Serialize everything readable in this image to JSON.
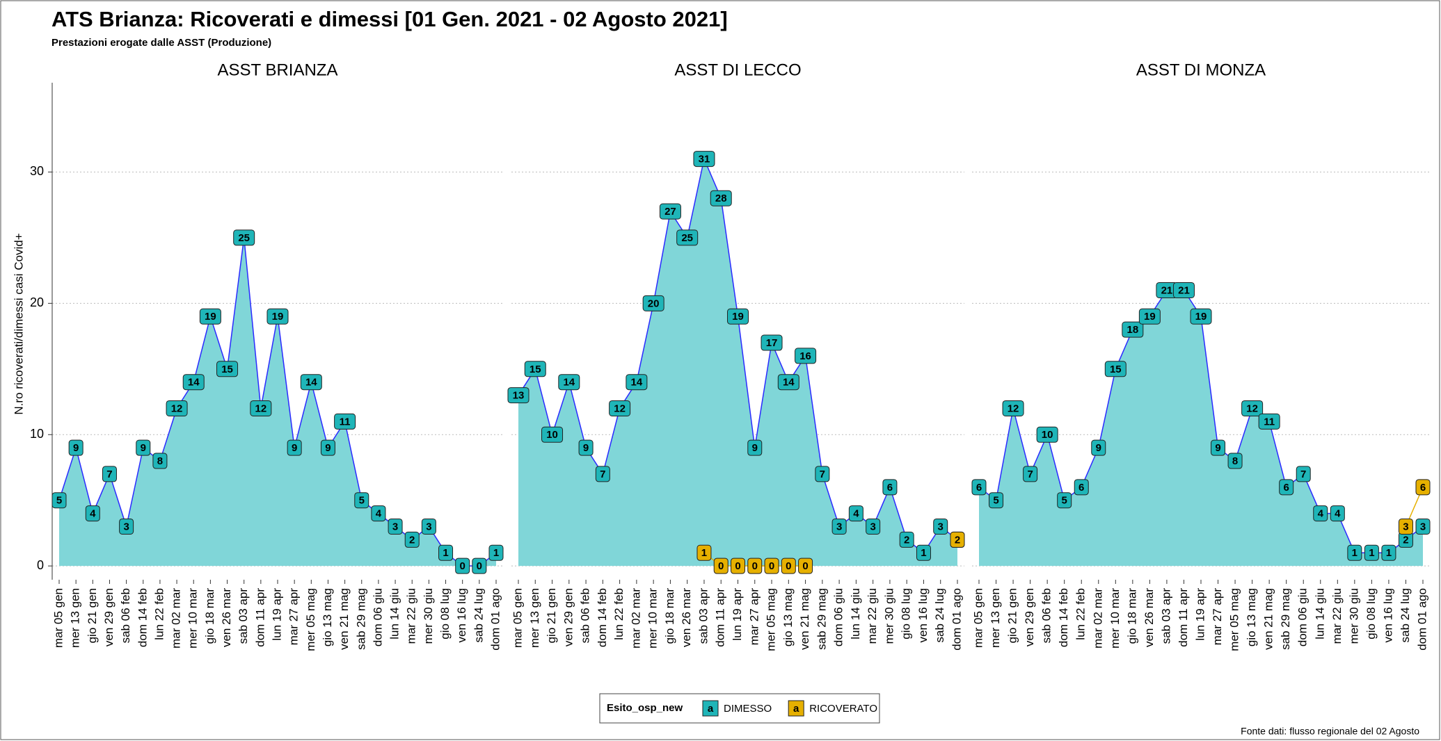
{
  "title": "ATS Brianza: Ricoverati e dimessi [01 Gen. 2021 - 02 Agosto 2021]",
  "subtitle": "Prestazioni erogate dalle ASST (Produzione)",
  "y_label": "N.ro ricoverati/dimessi casi Covid+",
  "legend_title": "Esito_osp_new",
  "legend_glyph": "a",
  "source": "Fonte dati: flusso regionale del 02 Agosto",
  "chart_data": [
    {
      "type": "line",
      "title": "ASST BRIANZA",
      "categories": [
        "mar 05 gen",
        "mer 13 gen",
        "gio 21 gen",
        "ven 29 gen",
        "sab 06 feb",
        "dom 14 feb",
        "lun 22 feb",
        "mar 02 mar",
        "mer 10 mar",
        "gio 18 mar",
        "ven 26 mar",
        "sab 03 apr",
        "dom 11 apr",
        "lun 19 apr",
        "mar 27 apr",
        "mer 05 mag",
        "gio 13 mag",
        "ven 21 mag",
        "sab 29 mag",
        "dom 06 giu",
        "lun 14 giu",
        "mar 22 giu",
        "mer 30 giu",
        "gio 08 lug",
        "ven 16 lug",
        "sab 24 lug",
        "dom 01 ago"
      ],
      "series": [
        {
          "name": "DIMESSO",
          "color": "#1fb5b8",
          "values": [
            5,
            9,
            4,
            7,
            3,
            9,
            8,
            12,
            14,
            19,
            15,
            25,
            12,
            19,
            9,
            14,
            9,
            11,
            5,
            4,
            3,
            2,
            3,
            1,
            0,
            0,
            1
          ]
        },
        {
          "name": "RICOVERATO",
          "color": "#e6b000",
          "values": [
            null,
            null,
            null,
            null,
            null,
            null,
            null,
            null,
            null,
            null,
            null,
            null,
            null,
            null,
            null,
            null,
            null,
            null,
            null,
            null,
            null,
            null,
            null,
            null,
            null,
            null,
            null
          ]
        }
      ],
      "ylim": [
        -1.05,
        36.8
      ],
      "yticks": [
        0,
        10,
        20,
        30
      ],
      "grid": true
    },
    {
      "type": "line",
      "title": "ASST DI LECCO",
      "categories": [
        "mar 05 gen",
        "mer 13 gen",
        "gio 21 gen",
        "ven 29 gen",
        "sab 06 feb",
        "dom 14 feb",
        "lun 22 feb",
        "mar 02 mar",
        "mer 10 mar",
        "gio 18 mar",
        "ven 26 mar",
        "sab 03 apr",
        "dom 11 apr",
        "lun 19 apr",
        "mar 27 apr",
        "mer 05 mag",
        "gio 13 mag",
        "ven 21 mag",
        "sab 29 mag",
        "dom 06 giu",
        "lun 14 giu",
        "mar 22 giu",
        "mer 30 giu",
        "gio 08 lug",
        "ven 16 lug",
        "sab 24 lug",
        "dom 01 ago"
      ],
      "series": [
        {
          "name": "DIMESSO",
          "color": "#1fb5b8",
          "values": [
            13,
            15,
            10,
            14,
            9,
            7,
            12,
            14,
            20,
            27,
            25,
            31,
            28,
            19,
            9,
            17,
            14,
            16,
            7,
            3,
            4,
            3,
            6,
            2,
            1,
            3,
            2
          ]
        },
        {
          "name": "RICOVERATO",
          "color": "#e6b000",
          "values": [
            null,
            null,
            null,
            null,
            null,
            null,
            null,
            null,
            null,
            null,
            null,
            1,
            0,
            0,
            0,
            0,
            0,
            0,
            null,
            null,
            null,
            null,
            null,
            null,
            null,
            null,
            2
          ]
        }
      ],
      "ylim": [
        -1.05,
        36.8
      ],
      "yticks": [
        0,
        10,
        20,
        30
      ],
      "grid": true
    },
    {
      "type": "line",
      "title": "ASST DI MONZA",
      "categories": [
        "mar 05 gen",
        "mer 13 gen",
        "gio 21 gen",
        "ven 29 gen",
        "sab 06 feb",
        "dom 14 feb",
        "lun 22 feb",
        "mar 02 mar",
        "mer 10 mar",
        "gio 18 mar",
        "ven 26 mar",
        "sab 03 apr",
        "dom 11 apr",
        "lun 19 apr",
        "mar 27 apr",
        "mer 05 mag",
        "gio 13 mag",
        "ven 21 mag",
        "sab 29 mag",
        "dom 06 giu",
        "lun 14 giu",
        "mar 22 giu",
        "mer 30 giu",
        "gio 08 lug",
        "ven 16 lug",
        "sab 24 lug",
        "dom 01 ago"
      ],
      "series": [
        {
          "name": "DIMESSO",
          "color": "#1fb5b8",
          "values": [
            6,
            5,
            12,
            7,
            10,
            5,
            6,
            9,
            15,
            18,
            19,
            21,
            21,
            19,
            9,
            8,
            12,
            11,
            6,
            7,
            4,
            4,
            1,
            1,
            1,
            2,
            3
          ]
        },
        {
          "name": "RICOVERATO",
          "color": "#e6b000",
          "values": [
            null,
            null,
            null,
            null,
            null,
            null,
            null,
            null,
            null,
            null,
            null,
            null,
            null,
            null,
            null,
            null,
            null,
            null,
            null,
            null,
            null,
            null,
            null,
            null,
            null,
            3,
            6
          ]
        }
      ],
      "ylim": [
        -1.05,
        36.8
      ],
      "yticks": [
        0,
        10,
        20,
        30
      ],
      "grid": true
    }
  ]
}
